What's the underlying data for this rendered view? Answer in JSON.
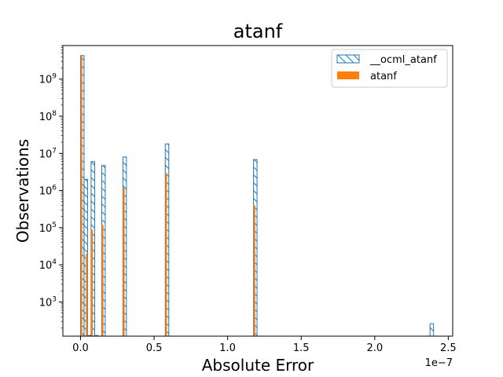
{
  "chart_data": {
    "type": "bar",
    "title": "atanf",
    "xlabel": "Absolute Error",
    "ylabel": "Observations",
    "x_offset_label": "1e−7",
    "yscale": "log",
    "xlim": [
      -0.12,
      2.53
    ],
    "ylim": [
      120,
      8000000000
    ],
    "x_ticks": [
      0.0,
      0.5,
      1.0,
      1.5,
      2.0,
      2.5
    ],
    "x_tick_labels": [
      "0.0",
      "0.5",
      "1.0",
      "1.5",
      "2.0",
      "2.5"
    ],
    "y_ticks": [
      1000,
      10000,
      100000,
      1000000,
      10000000,
      100000000,
      1000000000
    ],
    "y_tick_labels": [
      {
        "base": "10",
        "exp": "3"
      },
      {
        "base": "10",
        "exp": "4"
      },
      {
        "base": "10",
        "exp": "5"
      },
      {
        "base": "10",
        "exp": "6"
      },
      {
        "base": "10",
        "exp": "7"
      },
      {
        "base": "10",
        "exp": "8"
      },
      {
        "base": "10",
        "exp": "9"
      }
    ],
    "legend": {
      "placement": "top-right"
    },
    "series": [
      {
        "name": "__ocml_atanf",
        "style": "hatched-step",
        "color": "#1f77b4",
        "bins": [
          {
            "x0": 0.0,
            "x1": 0.024,
            "value": 4300000000
          },
          {
            "x0": 0.024,
            "x1": 0.048,
            "value": 2000000
          },
          {
            "x0": 0.048,
            "x1": 0.072,
            "value": 125
          },
          {
            "x0": 0.072,
            "x1": 0.096,
            "value": 6000000
          },
          {
            "x0": 0.096,
            "x1": 0.12,
            "value": 125
          },
          {
            "x0": 0.144,
            "x1": 0.168,
            "value": 4700000
          },
          {
            "x0": 0.288,
            "x1": 0.312,
            "value": 8000000
          },
          {
            "x0": 0.576,
            "x1": 0.6,
            "value": 18000000
          },
          {
            "x0": 1.176,
            "x1": 1.2,
            "value": 6800000
          },
          {
            "x0": 2.376,
            "x1": 2.4,
            "value": 260
          }
        ]
      },
      {
        "name": "atanf",
        "style": "filled",
        "color": "#ff7f0e",
        "bins": [
          {
            "x0": 0.0,
            "x1": 0.012,
            "value": 4300000000
          },
          {
            "x0": 0.036,
            "x1": 0.048,
            "value": 20000
          },
          {
            "x0": 0.072,
            "x1": 0.084,
            "value": 90000
          },
          {
            "x0": 0.144,
            "x1": 0.156,
            "value": 120000
          },
          {
            "x0": 0.288,
            "x1": 0.3,
            "value": 1200000
          },
          {
            "x0": 0.576,
            "x1": 0.588,
            "value": 3000000
          },
          {
            "x0": 1.176,
            "x1": 1.188,
            "value": 400000
          }
        ]
      }
    ]
  }
}
